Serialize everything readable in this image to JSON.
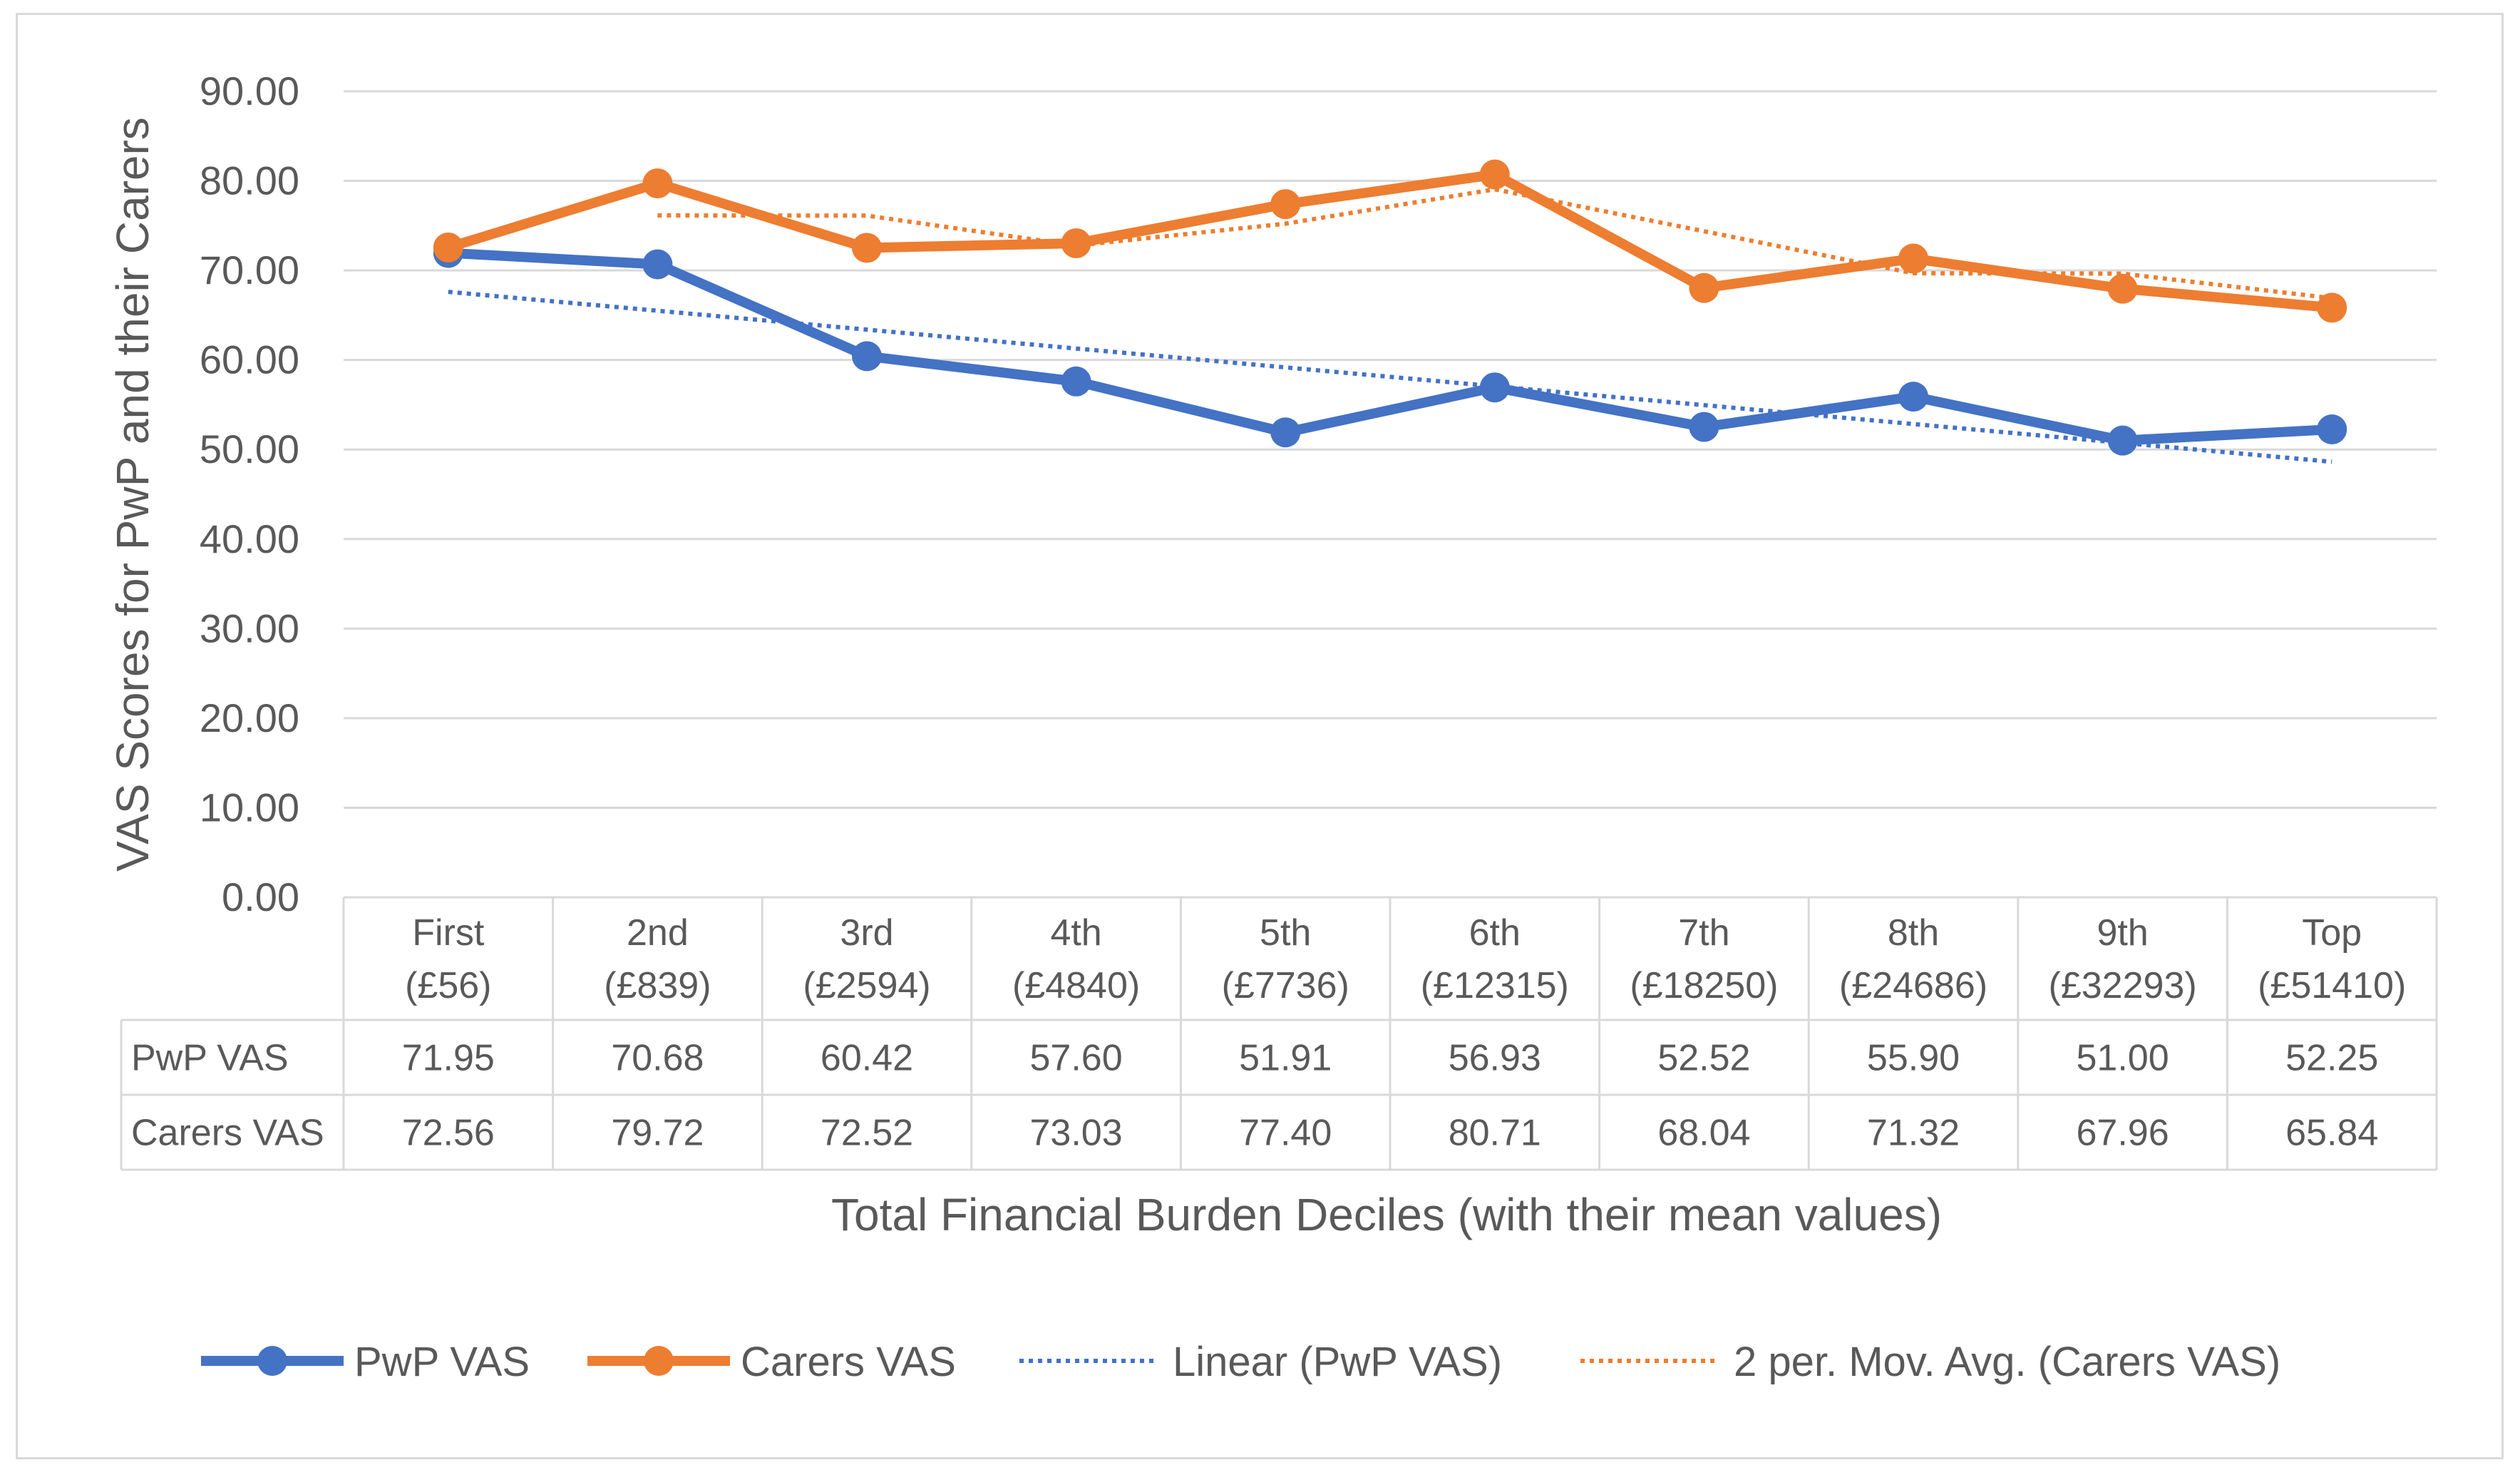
{
  "chart_data": {
    "type": "line",
    "ylabel": "VAS Scores for PwP and their Carers",
    "xlabel": "Total Financial Burden Deciles (with their mean values)",
    "ylim": [
      0,
      90
    ],
    "ytick_step": 10,
    "ytick_labels": [
      "0.00",
      "10.00",
      "20.00",
      "30.00",
      "40.00",
      "50.00",
      "60.00",
      "70.00",
      "80.00",
      "90.00"
    ],
    "categories": [
      {
        "name": "First",
        "mean": "(£56)"
      },
      {
        "name": "2nd",
        "mean": "(£839)"
      },
      {
        "name": "3rd",
        "mean": "(£2594)"
      },
      {
        "name": "4th",
        "mean": "(£4840)"
      },
      {
        "name": "5th",
        "mean": "(£7736)"
      },
      {
        "name": "6th",
        "mean": "(£12315)"
      },
      {
        "name": "7th",
        "mean": "(£18250)"
      },
      {
        "name": "8th",
        "mean": "(£24686)"
      },
      {
        "name": "9th",
        "mean": "(£32293)"
      },
      {
        "name": "Top",
        "mean": "(£51410)"
      }
    ],
    "series": [
      {
        "name": "PwP VAS",
        "color": "#4472c4",
        "values": [
          71.95,
          70.68,
          60.42,
          57.6,
          51.91,
          56.93,
          52.52,
          55.9,
          51.0,
          52.25
        ],
        "labels": [
          "71.95",
          "70.68",
          "60.42",
          "57.60",
          "51.91",
          "56.93",
          "52.52",
          "55.90",
          "51.00",
          "52.25"
        ]
      },
      {
        "name": "Carers VAS",
        "color": "#ed7d31",
        "values": [
          72.56,
          79.72,
          72.52,
          73.03,
          77.4,
          80.71,
          68.04,
          71.32,
          67.96,
          65.84
        ],
        "labels": [
          "72.56",
          "79.72",
          "72.52",
          "73.03",
          "77.40",
          "80.71",
          "68.04",
          "71.32",
          "67.96",
          "65.84"
        ]
      }
    ],
    "trendlines": [
      {
        "name": "Linear (PwP VAS)",
        "type": "linear",
        "of": "PwP VAS",
        "color": "#4472c4"
      },
      {
        "name": "2 per. Mov. Avg. (Carers VAS)",
        "type": "moving_average",
        "period": 2,
        "of": "Carers VAS",
        "color": "#ed7d31"
      }
    ],
    "legend_position": "bottom",
    "grid": true,
    "data_table": true
  }
}
